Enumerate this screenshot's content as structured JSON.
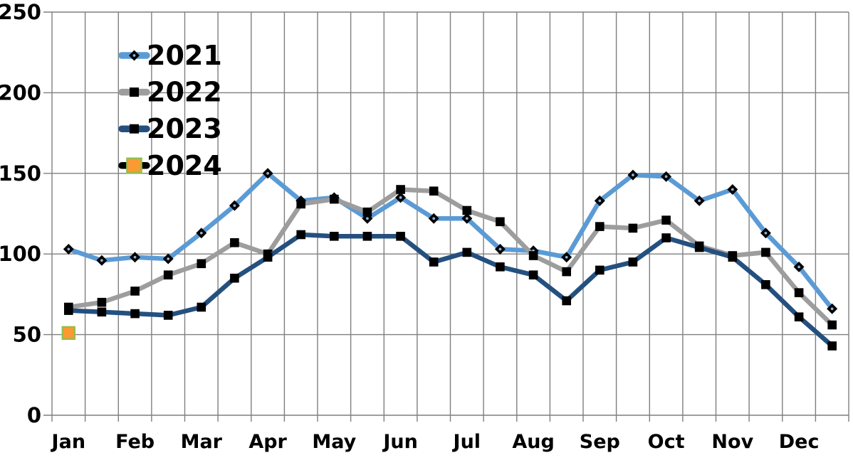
{
  "chart_data": {
    "type": "line",
    "title": "",
    "categories": [
      "Jan",
      "Feb",
      "Mar",
      "Apr",
      "May",
      "Jun",
      "Jul",
      "Aug",
      "Sep",
      "Oct",
      "Nov",
      "Dec"
    ],
    "points_per_month": 2,
    "x_note": "24 semi-monthly data points, month labels under the first half of each month",
    "y_axis": {
      "min": 0,
      "max": 250,
      "tick_interval": 50,
      "tick_labels": [
        "0",
        "50",
        "100",
        "150",
        "200",
        "250"
      ]
    },
    "grid": true,
    "legend": {
      "position": "top-left-inside",
      "entries": [
        "2021",
        "2022",
        "2023",
        "2024"
      ]
    },
    "series": [
      {
        "name": "2021",
        "line_color": "#5B9BD5",
        "marker": "diamond",
        "marker_color": "#000000",
        "values": [
          103,
          96,
          98,
          97,
          113,
          130,
          150,
          133,
          135,
          122,
          135,
          122,
          122,
          103,
          102,
          98,
          133,
          149,
          148,
          133,
          140,
          113,
          92,
          66
        ]
      },
      {
        "name": "2022",
        "line_color": "#9D9D9D",
        "marker": "square",
        "marker_color": "#000000",
        "values": [
          67,
          70,
          77,
          87,
          94,
          107,
          100,
          131,
          134,
          126,
          140,
          139,
          127,
          120,
          99,
          89,
          117,
          116,
          121,
          105,
          99,
          101,
          76,
          56
        ]
      },
      {
        "name": "2023",
        "line_color": "#24507F",
        "marker": "square",
        "marker_color": "#000000",
        "values": [
          65,
          64,
          63,
          62,
          67,
          85,
          98,
          112,
          111,
          111,
          111,
          95,
          101,
          92,
          87,
          71,
          90,
          95,
          110,
          104,
          98,
          81,
          61,
          43
        ]
      },
      {
        "name": "2024",
        "line_color": "#000000",
        "marker": "square",
        "marker_color": "#FB9A32",
        "marker_border_color": "#96BD4A",
        "values": [
          51,
          null,
          null,
          null,
          null,
          null,
          null,
          null,
          null,
          null,
          null,
          null,
          null,
          null,
          null,
          null,
          null,
          null,
          null,
          null,
          null,
          null,
          null,
          null
        ]
      }
    ]
  },
  "colors": {
    "background": "#FFFFFF",
    "gridline": "#7F7F7F",
    "axis_text": "#000000",
    "diamond_center_dot": "#8FB4DC"
  }
}
